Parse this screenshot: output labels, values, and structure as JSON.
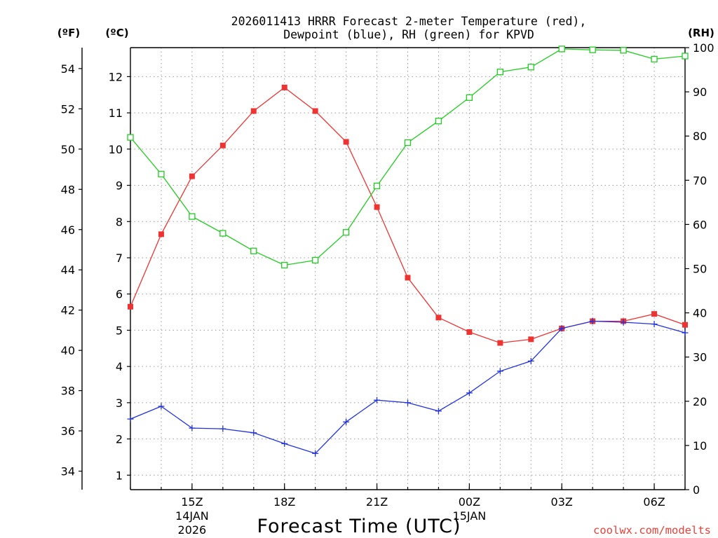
{
  "chart_data": {
    "type": "line",
    "title_line1": "2026011413 HRRR Forecast 2-meter Temperature (red),",
    "title_line2": "Dewpoint (blue), RH (green) for KPVD",
    "xlabel": "Forecast Time (UTC)",
    "credit": "coolwx.com/modelts",
    "left_outer_label": "(ºF)",
    "left_inner_label": "(ºC)",
    "right_label": "(RH)",
    "hours": [
      13,
      14,
      15,
      16,
      17,
      18,
      19,
      20,
      21,
      22,
      23,
      24,
      25,
      26,
      27,
      28,
      29,
      30,
      31
    ],
    "x_ticks": [
      {
        "hour": 15,
        "label": "15Z",
        "date": "14JAN",
        "year": "2026"
      },
      {
        "hour": 18,
        "label": "18Z",
        "date": "",
        "year": ""
      },
      {
        "hour": 21,
        "label": "21Z",
        "date": "",
        "year": ""
      },
      {
        "hour": 24,
        "label": "00Z",
        "date": "15JAN",
        "year": ""
      },
      {
        "hour": 27,
        "label": "03Z",
        "date": "",
        "year": ""
      },
      {
        "hour": 30,
        "label": "06Z",
        "date": "",
        "year": ""
      }
    ],
    "c_range": [
      0.6,
      12.8
    ],
    "c_ticks": [
      "1",
      "2",
      "3",
      "4",
      "5",
      "6",
      "7",
      "8",
      "9",
      "10",
      "11",
      "12"
    ],
    "f_ticks": [
      "34",
      "36",
      "38",
      "40",
      "42",
      "44",
      "46",
      "48",
      "50",
      "52",
      "54"
    ],
    "rh_range": [
      0,
      100
    ],
    "rh_ticks": [
      "0",
      "10",
      "20",
      "30",
      "40",
      "50",
      "60",
      "70",
      "80",
      "90",
      "100"
    ],
    "series": [
      {
        "name": "Temperature",
        "color": "#ee3333",
        "marker": "filled-square",
        "units": "C",
        "values": [
          5.65,
          7.65,
          9.25,
          10.1,
          11.05,
          11.7,
          11.05,
          10.2,
          8.4,
          6.45,
          5.35,
          4.95,
          4.65,
          4.75,
          5.05,
          5.25,
          5.25,
          5.45,
          5.15
        ]
      },
      {
        "name": "Dewpoint",
        "color": "#2233dd",
        "marker": "plus",
        "units": "C",
        "values": [
          2.55,
          2.9,
          2.3,
          2.28,
          2.17,
          1.87,
          1.6,
          2.47,
          3.07,
          3.0,
          2.77,
          3.27,
          3.87,
          4.15,
          5.05,
          5.25,
          5.22,
          5.17,
          4.93
        ]
      },
      {
        "name": "RH",
        "color": "#22cc22",
        "marker": "open-square",
        "units": "%",
        "values": [
          79.7,
          71.4,
          61.8,
          58.0,
          54.0,
          50.8,
          51.9,
          58.2,
          68.7,
          78.5,
          83.4,
          88.7,
          94.5,
          95.6,
          99.7,
          99.5,
          99.4,
          97.4,
          98.1
        ]
      }
    ]
  }
}
